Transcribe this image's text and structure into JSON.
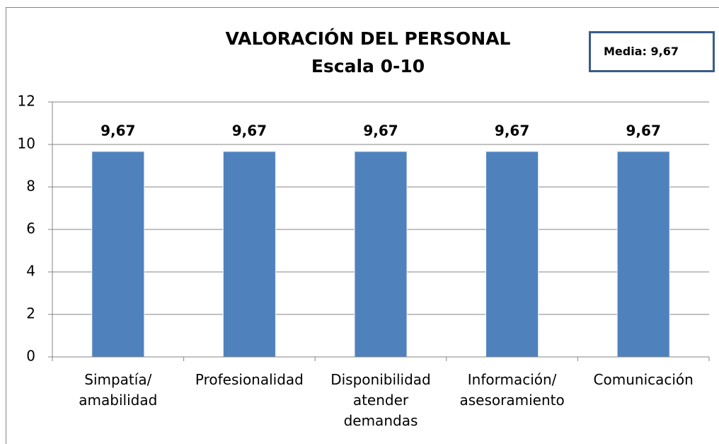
{
  "chart_data": {
    "type": "bar",
    "title": "VALORACIÓN DEL PERSONAL",
    "subtitle": "Escala 0-10",
    "annotation": "Media: 9,67",
    "categories": [
      "Simpatía/ amabilidad",
      "Profesionalidad",
      "Disponibilidad atender demandas",
      "Información/ asesoramiento",
      "Comunicación"
    ],
    "values": [
      9.67,
      9.67,
      9.67,
      9.67,
      9.67
    ],
    "value_labels": [
      "9,67",
      "9,67",
      "9,67",
      "9,67",
      "9,67"
    ],
    "color": "#4f81bd",
    "ylim": [
      0,
      12
    ],
    "yticks": [
      0,
      2,
      4,
      6,
      8,
      10,
      12
    ],
    "grid": true
  }
}
